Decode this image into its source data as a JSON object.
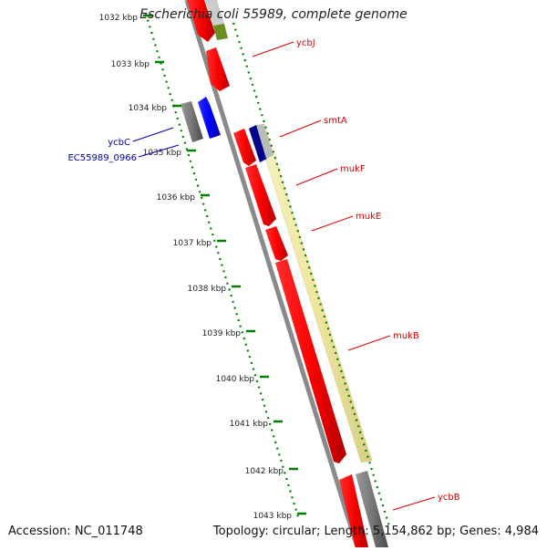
{
  "title": "Escherichia coli 55989, complete genome",
  "accession": "Accession: NC_011748",
  "summary": "Topology: circular; Length: 5,154,862 bp; Genes: 4,984",
  "ticks": [
    {
      "label": "1032 kbp"
    },
    {
      "label": "1033 kbp"
    },
    {
      "label": "1034 kbp"
    },
    {
      "label": "1035 kbp"
    },
    {
      "label": "1036 kbp"
    },
    {
      "label": "1037 kbp"
    },
    {
      "label": "1038 kbp"
    },
    {
      "label": "1039 kbp"
    },
    {
      "label": "1040 kbp"
    },
    {
      "label": "1041 kbp"
    },
    {
      "label": "1042 kbp"
    },
    {
      "label": "1043 kbp"
    }
  ],
  "gene_labels": [
    {
      "name": "ycbJ",
      "color": "#d40000"
    },
    {
      "name": "smtA",
      "color": "#d40000"
    },
    {
      "name": "mukF",
      "color": "#d40000"
    },
    {
      "name": "mukE",
      "color": "#d40000"
    },
    {
      "name": "mukB",
      "color": "#d40000"
    },
    {
      "name": "ycbB",
      "color": "#d40000"
    },
    {
      "name": "ycbC",
      "color": "#0000aa"
    },
    {
      "name": "EC55989_0966",
      "color": "#0000aa"
    }
  ],
  "colors": {
    "forward_gene": "#ff0000",
    "reverse_gene": "#0000ff",
    "pseudo_gray": "#777777",
    "cds_band": "#f0eaa0",
    "olive": "#6b8e23",
    "tick": "#008000",
    "backbone": "#888888"
  }
}
